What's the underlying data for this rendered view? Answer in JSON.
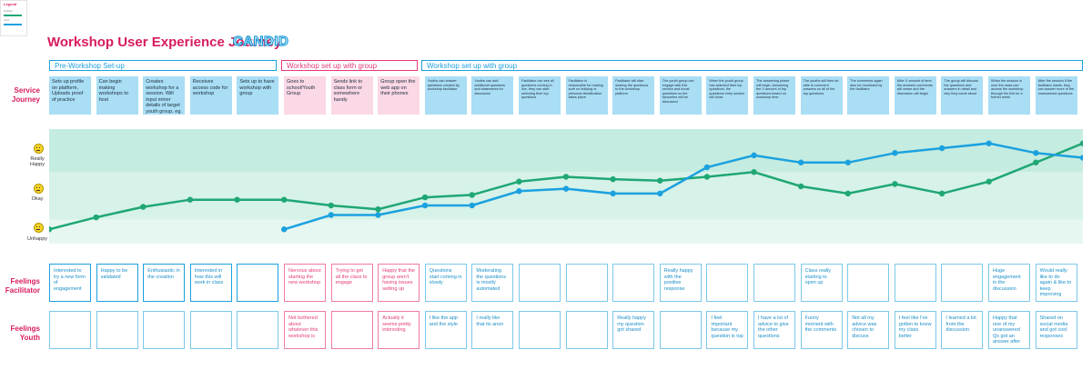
{
  "header": {
    "legend_title": "Legend",
    "legend_item_1": "facilitator",
    "legend_item_2": "youth",
    "title": "Workshop User Experience Journey",
    "logo_text": "CANDID"
  },
  "phases": [
    {
      "label": "Pre-Workshop Set-up",
      "color": "#1ba1df"
    },
    {
      "label": "Workshop set up with group",
      "color": "#e63a7a"
    },
    {
      "label": "Workshop set up with group",
      "color": "#1ba1df"
    }
  ],
  "row_labels": {
    "service_journey": "Service Journey",
    "feelings_facilitator": "Feelings Facilitator",
    "feelings_youth": "Feelings Youth"
  },
  "emotion_labels": {
    "happy": "Really Happy",
    "okay": "Okay",
    "unhappy": "Unhappy"
  },
  "service_journey": [
    "Sets up profile on platform, Uploads proof of practice",
    "Can begin making workshops to host",
    "Creates workshop for a session. Will input minor details of target youth group, eg. age, location",
    "Receives access code for workshop",
    "Sets up to have workshop with group",
    "Goes to school/Youth Group",
    "Sends link to class form or somewhere handy",
    "Group open the web app on their phones",
    "Youths can answer questions created by workshop facilitator",
    "Youths can add additional questions and statements for discussion",
    "Facilitator can see all questions coming in live, they can start selecting their top questions",
    "Facilitator is responsible for making sure no bullying or personal identification takes place",
    "Facilitator will start sharing the questions to the workshop platform",
    "The youth group can engage with this section and boost questions so the favourites will be discussed",
    "When the youth group has selected their top questions, the questions entry section will close",
    "The answering phase will begin. Answering the X amount of top questions based on workshop time",
    "The youths will then be able to comment answers on all of the top questions.",
    "The comments again also be monitored by the facilitator",
    "After X amount of time, the answers comments will cease and the discussion will begin",
    "The group will discuss the questions and answers in detail and why they came about",
    "When the session is over the class can access the workshop through the link for a further week",
    "After the session if the facilitator wants, they can answer more of the unanswered questions"
  ],
  "feelings_facilitator": [
    "Interested to try a new form of engagement",
    "Happy to be validated",
    "Enthusiastic in the creation",
    "Interested in how this will work in class",
    "",
    "Nervous about starting the new workshop",
    "Trying to get all the class to engage",
    "Happy that the group aren't having issues setting up",
    "Questions start coming in slowly",
    "Moderating the questions is mostly automated",
    "",
    "",
    "",
    "Really happy with the positive response",
    "",
    "",
    "Class really starting to open up",
    "",
    "",
    "",
    "Huge engagement in the discussion",
    "Would really like to do again & like to keep improving"
  ],
  "feelings_youth": [
    "",
    "",
    "",
    "",
    "",
    "Not bothered about whatever this workshop is",
    "",
    "Actually it seems pretty interesting",
    "I like the app and the style",
    "I really like that its anon",
    "",
    "",
    "Really happy my question got shared",
    "",
    "I feel important because my question is top",
    "I have a lot of advice to give the other questions",
    "Funny moment with the comments",
    "Not all my advice was chosen to discuss",
    "I feel like I've gotten to know my class better",
    "I learned a lot from the discussion",
    "Happy that one of my unanswered Qs got an answer after",
    "Shared on social media and got cool responses"
  ],
  "chart_data": {
    "type": "line",
    "scale": "Unhappy = 0, Okay = 1, Really Happy = 2",
    "ylim": [
      0,
      2.4
    ],
    "series": [
      {
        "name": "facilitator",
        "color": "#1fa774",
        "values": [
          0.3,
          0.55,
          0.77,
          0.92,
          0.92,
          0.92,
          0.8,
          0.72,
          0.97,
          1.02,
          1.3,
          1.4,
          1.35,
          1.32,
          1.4,
          1.5,
          1.2,
          1.05,
          1.25,
          1.05,
          1.3,
          1.7,
          2.1
        ]
      },
      {
        "name": "youth",
        "color": "#1ba1df",
        "values": [
          null,
          null,
          null,
          null,
          null,
          0.3,
          0.6,
          0.6,
          0.8,
          0.8,
          1.1,
          1.15,
          1.05,
          1.05,
          1.6,
          1.85,
          1.7,
          1.7,
          1.9,
          2.0,
          2.1,
          1.9,
          1.8
        ]
      }
    ]
  },
  "colors": {
    "blue_fill": "#a9def5",
    "pink_fill": "#fbd8e6",
    "blue_border": "#7cc8ea",
    "pink_border": "#ef7aa6",
    "band_top": "#c5ece0",
    "band_mid": "#d6f2e9",
    "band_bot": "#e6f7f1"
  }
}
